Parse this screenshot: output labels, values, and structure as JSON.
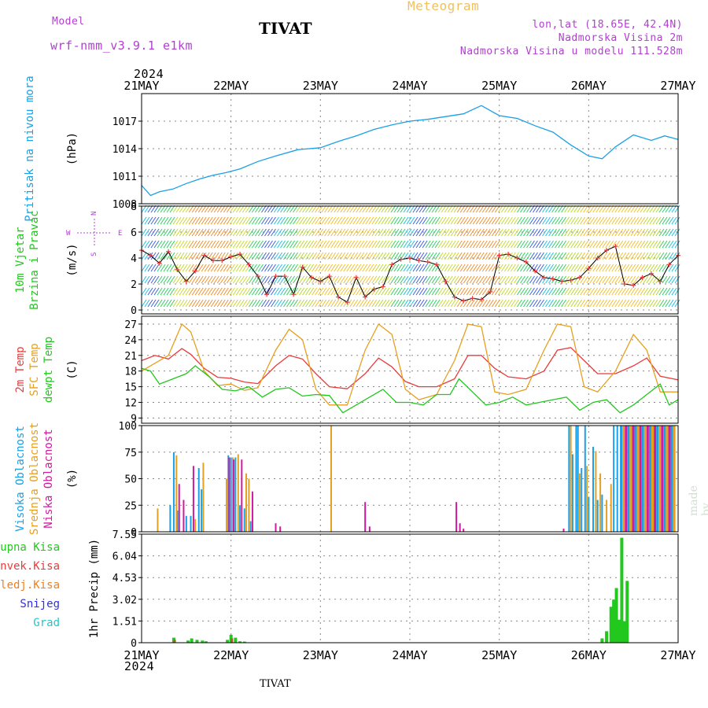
{
  "header": {
    "title": "Meteogram",
    "station": "TIVAT",
    "model_label": "Model",
    "model_name": "wrf-nmm_v3.9.1 e1km",
    "lonlat": "lon,lat (18.65E, 42.4N)",
    "elevation": "Nadmorska Visina 2m",
    "model_elevation": "Nadmorska Visina u modelu 111.528m",
    "year_top": "2024",
    "year_bottom": "2024",
    "footer_station": "TIVAT",
    "watermark": "made by Angel"
  },
  "colors": {
    "pressure": "#1aa0e6",
    "wind_speed": "#000000",
    "temp2m": "#e83c3c",
    "sfc_temp": "#e6a020",
    "dewpoint": "#22c81e",
    "cloud_high": "#1aa0e6",
    "cloud_mid": "#e6a020",
    "cloud_low": "#d01aa0",
    "precip_total": "#22c81e",
    "precip_conv": "#e83c3c",
    "precip_frozen": "#f08020",
    "snow": "#3030e0",
    "hail": "#20c8c8",
    "label_purple": "#b040d0",
    "title_orange": "#f0c060"
  },
  "chart_data": [
    {
      "type": "line",
      "panel": "pressure",
      "ylabel": [
        "Pritisak na nivou mora",
        "(hPa)"
      ],
      "yticks": [
        1008,
        1011,
        1014,
        1017
      ],
      "ylim": [
        1008,
        1020
      ],
      "x_dates": [
        "21MAY",
        "22MAY",
        "23MAY",
        "24MAY",
        "25MAY",
        "26MAY",
        "27MAY"
      ],
      "series": [
        {
          "x": [
            0,
            0.1,
            0.2,
            0.35,
            0.5,
            0.65,
            0.8,
            0.95,
            1.1,
            1.3,
            1.5,
            1.75,
            2.0,
            2.2,
            2.4,
            2.6,
            2.8,
            3.0,
            3.2,
            3.4,
            3.6,
            3.8,
            4.0,
            4.2,
            4.4,
            4.6,
            4.8,
            5.0,
            5.15,
            5.3,
            5.5,
            5.7,
            5.85,
            6.0
          ],
          "values": [
            1010.0,
            1008.9,
            1009.3,
            1009.6,
            1010.2,
            1010.7,
            1011.1,
            1011.4,
            1011.8,
            1012.6,
            1013.2,
            1013.9,
            1014.1,
            1014.8,
            1015.4,
            1016.1,
            1016.6,
            1017.0,
            1017.2,
            1017.5,
            1017.8,
            1018.7,
            1017.6,
            1017.3,
            1016.5,
            1015.8,
            1014.4,
            1013.2,
            1012.9,
            1014.2,
            1015.5,
            1014.9,
            1015.4,
            1015.0
          ]
        }
      ]
    },
    {
      "type": "line",
      "panel": "wind",
      "ylabel": [
        "10m Vjetar",
        "Brzina i Pravac",
        "(m/s)"
      ],
      "compass_legend": [
        "N",
        "W",
        "E",
        "S"
      ],
      "yticks": [
        0,
        2,
        4,
        6,
        8
      ],
      "ylim": [
        -0.3,
        8
      ],
      "series": [
        {
          "name": "speed",
          "x": [
            0,
            0.1,
            0.2,
            0.3,
            0.4,
            0.5,
            0.6,
            0.7,
            0.8,
            0.9,
            1.0,
            1.1,
            1.2,
            1.3,
            1.4,
            1.5,
            1.6,
            1.7,
            1.8,
            1.9,
            2.0,
            2.1,
            2.2,
            2.3,
            2.4,
            2.5,
            2.6,
            2.7,
            2.8,
            2.9,
            3.0,
            3.1,
            3.2,
            3.3,
            3.4,
            3.5,
            3.6,
            3.7,
            3.8,
            3.9,
            4.0,
            4.1,
            4.2,
            4.3,
            4.4,
            4.5,
            4.6,
            4.7,
            4.8,
            4.9,
            5.0,
            5.1,
            5.2,
            5.3,
            5.4,
            5.5,
            5.6,
            5.7,
            5.8,
            5.9,
            6.0
          ],
          "values": [
            4.6,
            4.2,
            3.6,
            4.5,
            3.1,
            2.2,
            3.0,
            4.2,
            3.8,
            3.8,
            4.1,
            4.3,
            3.5,
            2.6,
            1.2,
            2.6,
            2.6,
            1.2,
            3.3,
            2.5,
            2.2,
            2.6,
            1.0,
            0.6,
            2.5,
            1.0,
            1.6,
            1.8,
            3.5,
            3.9,
            4.0,
            3.8,
            3.7,
            3.5,
            2.2,
            1.0,
            0.7,
            0.9,
            0.8,
            1.4,
            4.2,
            4.3,
            4.0,
            3.7,
            3.0,
            2.5,
            2.4,
            2.2,
            2.3,
            2.5,
            3.2,
            4.0,
            4.6,
            4.9,
            2.0,
            1.9,
            2.5,
            2.8,
            2.2,
            3.5,
            4.2
          ]
        }
      ]
    },
    {
      "type": "line",
      "panel": "temperature",
      "ylabel": [
        "2m Temp",
        "SFC Temp",
        "dewpt Temp",
        "(C)"
      ],
      "yticks": [
        9,
        12,
        15,
        18,
        21,
        24,
        27
      ],
      "ylim": [
        8,
        28.5
      ],
      "series": [
        {
          "name": "2m Temp",
          "x": [
            0,
            0.15,
            0.3,
            0.45,
            0.55,
            0.7,
            0.85,
            1.0,
            1.15,
            1.3,
            1.5,
            1.65,
            1.8,
            1.95,
            2.1,
            2.3,
            2.5,
            2.65,
            2.8,
            2.95,
            3.1,
            3.3,
            3.5,
            3.65,
            3.8,
            3.95,
            4.1,
            4.3,
            4.5,
            4.65,
            4.8,
            4.95,
            5.1,
            5.3,
            5.5,
            5.65,
            5.8,
            6.0
          ],
          "values": [
            20.0,
            21.0,
            20.3,
            22.3,
            21.2,
            18.5,
            16.8,
            16.6,
            15.9,
            15.6,
            19.0,
            21.0,
            20.3,
            17.5,
            15.0,
            14.6,
            17.5,
            20.5,
            18.8,
            16.0,
            15.0,
            15.0,
            16.5,
            21.0,
            21.0,
            18.5,
            16.9,
            16.5,
            18.0,
            22.0,
            22.5,
            20.0,
            17.5,
            17.5,
            19.0,
            20.5,
            17.0,
            16.3
          ]
        },
        {
          "name": "SFC Temp",
          "x": [
            0,
            0.15,
            0.3,
            0.45,
            0.55,
            0.7,
            0.85,
            1.0,
            1.15,
            1.3,
            1.5,
            1.65,
            1.8,
            1.95,
            2.1,
            2.3,
            2.5,
            2.65,
            2.8,
            2.95,
            3.1,
            3.3,
            3.5,
            3.65,
            3.8,
            3.95,
            4.1,
            4.3,
            4.5,
            4.65,
            4.8,
            4.95,
            5.1,
            5.3,
            5.5,
            5.65,
            5.8,
            6.0
          ],
          "values": [
            18.0,
            19.5,
            21.0,
            27.0,
            25.5,
            18.0,
            15.2,
            15.5,
            14.3,
            14.8,
            22.0,
            26.0,
            24.0,
            14.5,
            11.5,
            11.5,
            22.0,
            27.0,
            25.0,
            14.5,
            12.5,
            13.5,
            20.0,
            27.0,
            26.5,
            14.0,
            13.5,
            14.5,
            22.0,
            27.0,
            26.5,
            15.0,
            14.0,
            18.0,
            25.0,
            22.0,
            14.0,
            14.0
          ]
        },
        {
          "name": "dewpt Temp",
          "x": [
            0,
            0.1,
            0.2,
            0.35,
            0.5,
            0.6,
            0.75,
            0.9,
            1.05,
            1.2,
            1.35,
            1.5,
            1.65,
            1.8,
            1.95,
            2.1,
            2.25,
            2.4,
            2.55,
            2.7,
            2.85,
            3.0,
            3.15,
            3.3,
            3.45,
            3.55,
            3.7,
            3.85,
            4.0,
            4.15,
            4.3,
            4.45,
            4.6,
            4.75,
            4.9,
            5.05,
            5.2,
            5.35,
            5.5,
            5.65,
            5.8,
            5.9,
            6.0
          ],
          "values": [
            18.5,
            18.0,
            15.5,
            16.5,
            17.5,
            19.0,
            17.0,
            14.5,
            14.2,
            15.0,
            13.0,
            14.5,
            14.8,
            13.2,
            13.5,
            13.3,
            10.0,
            11.5,
            13.0,
            14.5,
            12.0,
            12.0,
            11.5,
            13.5,
            13.5,
            16.5,
            14.0,
            11.5,
            12.0,
            13.0,
            11.5,
            12.0,
            12.5,
            13.0,
            10.5,
            12.0,
            12.5,
            10.0,
            11.5,
            13.5,
            15.5,
            11.5,
            12.5
          ]
        }
      ]
    },
    {
      "type": "bar",
      "panel": "cloud",
      "ylabel": [
        "Visoka Oblacnost",
        "Srednja Oblacnost",
        "Niska Oblacnost",
        "(%)"
      ],
      "yticks": [
        0,
        25,
        50,
        75,
        100
      ],
      "ylim": [
        0,
        100
      ],
      "series": [
        {
          "name": "Visoka Oblacnost",
          "x": [
            0.32,
            0.36,
            0.4,
            0.5,
            0.55,
            0.64,
            0.67,
            0.97,
            1.0,
            1.05,
            1.1,
            1.15,
            1.22,
            4.78,
            4.82,
            4.86,
            4.88,
            4.92,
            4.96,
            5.0,
            5.05,
            5.1,
            5.15,
            5.28,
            5.32
          ],
          "values": [
            25,
            75,
            20,
            15,
            15,
            60,
            40,
            72,
            70,
            70,
            25,
            22,
            10,
            100,
            73,
            100,
            100,
            60,
            100,
            33,
            80,
            30,
            35,
            100,
            100
          ]
        },
        {
          "name": "Srednja Oblacnost",
          "x": [
            0.18,
            0.39,
            0.6,
            0.69,
            0.95,
            1.02,
            1.08,
            1.17,
            1.2,
            2.12,
            4.8,
            4.9,
            4.98,
            5.08,
            5.13,
            5.2,
            5.25
          ],
          "values": [
            22,
            72,
            12,
            65,
            50,
            70,
            73,
            55,
            50,
            100,
            100,
            55,
            62,
            76,
            55,
            30,
            45
          ]
        },
        {
          "name": "Niska Oblacnost",
          "x": [
            0.42,
            0.47,
            0.58,
            0.98,
            1.03,
            1.12,
            1.24,
            1.5,
            1.55,
            2.5,
            2.55,
            3.52,
            3.56,
            3.6,
            4.72
          ],
          "values": [
            45,
            30,
            62,
            70,
            68,
            68,
            38,
            8,
            5,
            28,
            5,
            28,
            8,
            3,
            3
          ]
        },
        {
          "name": "dense-columns",
          "x_start": 5.35,
          "x_end": 5.96,
          "step": 0.027,
          "values": [
            100
          ]
        }
      ]
    },
    {
      "type": "bar",
      "panel": "precip",
      "ylabel": [
        "1hr Precip (mm)"
      ],
      "legend": [
        "Ukupna Kisa",
        "Konvek.Kisa",
        "Zaledj.Kisa",
        "Snijeg",
        "Grad"
      ],
      "yticks": [
        0,
        1.51,
        3.02,
        4.53,
        6.04,
        7.55
      ],
      "ylim": [
        0,
        7.55
      ],
      "series": [
        {
          "name": "Ukupna Kisa",
          "x": [
            0.36,
            0.52,
            0.56,
            0.62,
            0.68,
            0.72,
            0.96,
            1.0,
            1.05,
            1.1,
            1.15,
            5.15,
            5.2,
            5.25,
            5.28,
            5.31,
            5.34,
            5.37,
            5.4,
            5.43
          ],
          "values": [
            0.35,
            0.15,
            0.3,
            0.2,
            0.15,
            0.1,
            0.2,
            0.55,
            0.35,
            0.1,
            0.08,
            0.3,
            0.8,
            2.5,
            3.0,
            3.8,
            1.6,
            7.3,
            1.5,
            4.3
          ]
        },
        {
          "name": "Konvek.Kisa",
          "x": [
            0.37,
            1.01
          ],
          "values": [
            0.2,
            0.3
          ]
        }
      ]
    }
  ]
}
